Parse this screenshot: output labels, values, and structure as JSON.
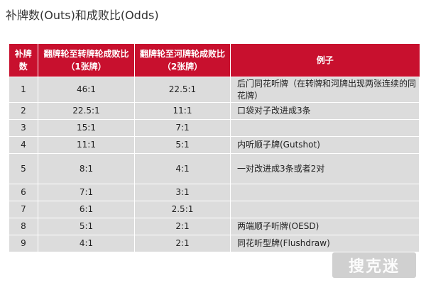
{
  "title": "补牌数(Outs)和成败比(Odds)",
  "table": {
    "headers": {
      "outs": "补牌数",
      "flop_to_turn": "翻牌轮至转牌轮成败比（1张牌）",
      "turn_to_river": "翻牌轮至河牌轮成败比（2张牌）",
      "example": "例子"
    },
    "rows": [
      {
        "outs": "1",
        "one_card": "46:1",
        "two_card": "22.5:1",
        "example": "后门同花听牌（在转牌和河牌出现两张连续的同花牌）"
      },
      {
        "outs": "2",
        "one_card": "22.5:1",
        "two_card": "11:1",
        "example": "口袋对子改进成3条"
      },
      {
        "outs": "3",
        "one_card": "15:1",
        "two_card": "7:1",
        "example": ""
      },
      {
        "outs": "4",
        "one_card": "11:1",
        "two_card": "5:1",
        "example": "内听顺子牌(Gutshot)"
      },
      {
        "outs": "5",
        "one_card": "8:1",
        "two_card": "4:1",
        "example": "一对改进成3条或者2对"
      },
      {
        "outs": "6",
        "one_card": "7:1",
        "two_card": "3:1",
        "example": ""
      },
      {
        "outs": "7",
        "one_card": "6:1",
        "two_card": "2.5:1",
        "example": ""
      },
      {
        "outs": "8",
        "one_card": "5:1",
        "two_card": "2:1",
        "example": "两端顺子听牌(OESD)"
      },
      {
        "outs": "9",
        "one_card": "4:1",
        "two_card": "2:1",
        "example": "同花听型牌(Flushdraw)"
      }
    ]
  },
  "watermark": {
    "text": "搜克迷"
  }
}
